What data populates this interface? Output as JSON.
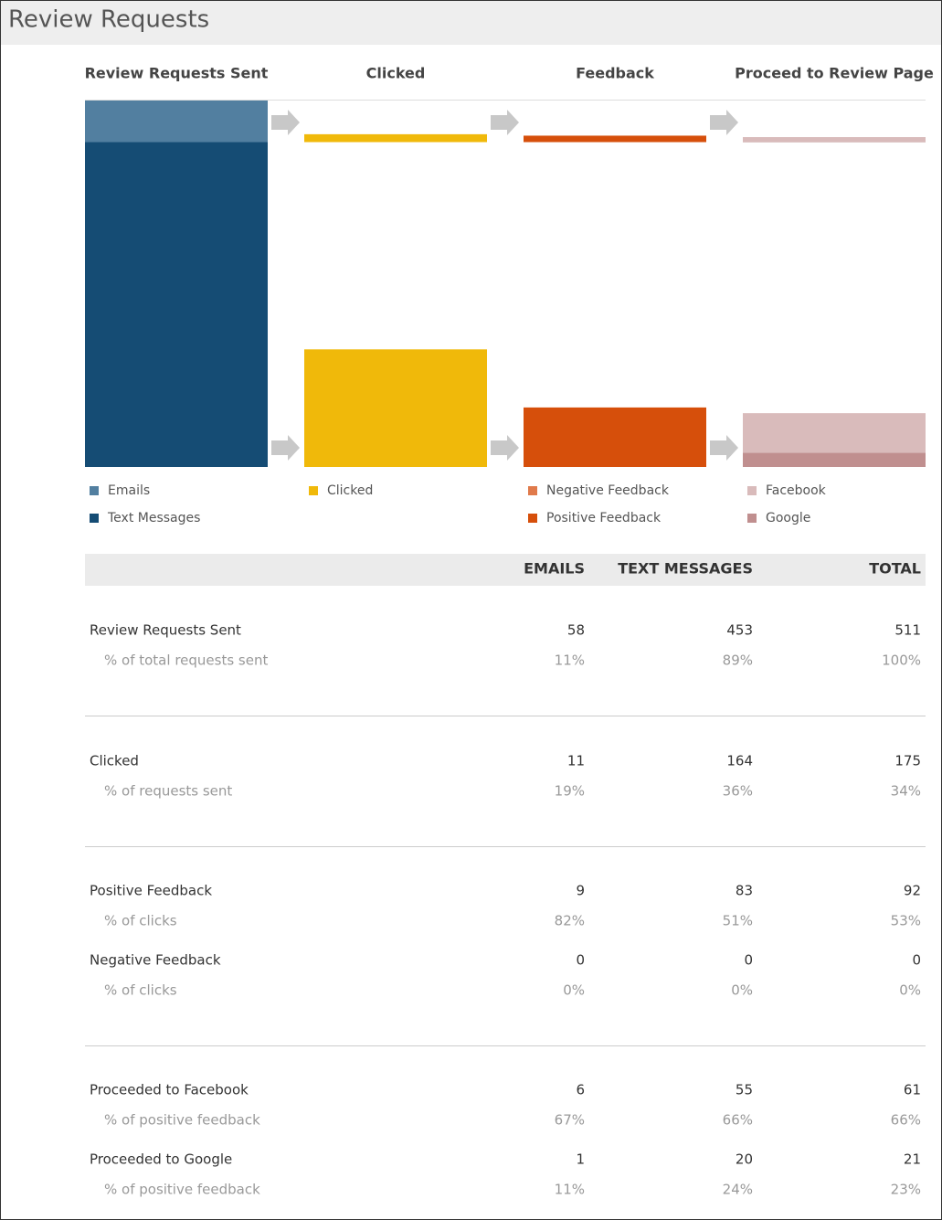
{
  "header": {
    "title": "Review Requests"
  },
  "funnel": {
    "columns": [
      {
        "title": "Review Requests Sent",
        "legend": [
          {
            "name": "Emails",
            "color": "#527fa0"
          },
          {
            "name": "Text Messages",
            "color": "#154c74"
          }
        ]
      },
      {
        "title": "Clicked",
        "legend": [
          {
            "name": "Clicked",
            "color": "#f0b90a"
          }
        ]
      },
      {
        "title": "Feedback",
        "legend": [
          {
            "name": "Negative Feedback",
            "color": "#e07a4b"
          },
          {
            "name": "Positive Feedback",
            "color": "#d64f0b"
          }
        ]
      },
      {
        "title": "Proceed to Review Page",
        "legend": [
          {
            "name": "Facebook",
            "color": "#d9bbbb"
          },
          {
            "name": "Google",
            "color": "#c08f8f"
          }
        ]
      }
    ]
  },
  "table": {
    "columns": [
      "EMAILS",
      "TEXT MESSAGES",
      "TOTAL"
    ],
    "groups": [
      {
        "rows": [
          {
            "label": "Review Requests Sent",
            "values": [
              58,
              453,
              511
            ],
            "sublabel": "% of total requests sent",
            "percents": [
              "11%",
              "89%",
              "100%"
            ]
          }
        ]
      },
      {
        "rows": [
          {
            "label": "Clicked",
            "values": [
              11,
              164,
              175
            ],
            "sublabel": "% of requests sent",
            "percents": [
              "19%",
              "36%",
              "34%"
            ]
          }
        ]
      },
      {
        "rows": [
          {
            "label": "Positive Feedback",
            "values": [
              9,
              83,
              92
            ],
            "sublabel": "% of clicks",
            "percents": [
              "82%",
              "51%",
              "53%"
            ]
          },
          {
            "label": "Negative Feedback",
            "values": [
              0,
              0,
              0
            ],
            "sublabel": "% of clicks",
            "percents": [
              "0%",
              "0%",
              "0%"
            ]
          }
        ]
      },
      {
        "rows": [
          {
            "label": "Proceeded to Facebook",
            "values": [
              6,
              55,
              61
            ],
            "sublabel": "% of positive feedback",
            "percents": [
              "67%",
              "66%",
              "66%"
            ]
          },
          {
            "label": "Proceeded to Google",
            "values": [
              1,
              20,
              21
            ],
            "sublabel": "% of positive feedback",
            "percents": [
              "11%",
              "24%",
              "23%"
            ]
          }
        ]
      }
    ]
  }
}
